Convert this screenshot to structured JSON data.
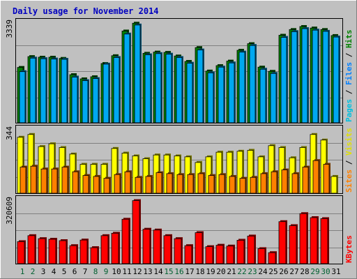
{
  "title": "Daily usage for November 2014",
  "colors": {
    "background": "#c0c0c0",
    "title": "#0000c0",
    "hits": "#008000",
    "files": "#00a8f0",
    "pages": "#00c0e0",
    "visits": "#ffff00",
    "sites": "#ff8000",
    "kbytes": "#ff0000",
    "weekend_day": "#006030",
    "weekday": "#000000"
  },
  "chart_data": [
    {
      "type": "bar",
      "name": "hits-files-pages",
      "ymax_label": "3339",
      "ylim": [
        0,
        3339
      ],
      "legend": [
        "Pages",
        "Files",
        "Hits"
      ],
      "categories": [
        "1",
        "2",
        "3",
        "4",
        "5",
        "6",
        "7",
        "8",
        "9",
        "10",
        "11",
        "12",
        "13",
        "14",
        "15",
        "16",
        "17",
        "18",
        "19",
        "20",
        "21",
        "22",
        "23",
        "24",
        "25",
        "26",
        "27",
        "28",
        "29",
        "30",
        "31"
      ],
      "series": [
        {
          "name": "Hits",
          "values": [
            1840,
            2200,
            2180,
            2180,
            2140,
            1600,
            1460,
            1530,
            1970,
            2230,
            3050,
            3310,
            2310,
            2350,
            2340,
            2220,
            2040,
            2500,
            1720,
            1900,
            2050,
            2410,
            2630,
            1850,
            1710,
            2910,
            3100,
            3200,
            3150,
            3100,
            2900
          ],
          "color": "#008000"
        },
        {
          "name": "Files",
          "values": [
            1700,
            2150,
            2130,
            2120,
            2110,
            1520,
            1400,
            1470,
            1950,
            2170,
            2950,
            3250,
            2260,
            2300,
            2280,
            2170,
            1980,
            2420,
            1660,
            1850,
            1990,
            2350,
            2570,
            1780,
            1640,
            2840,
            3030,
            3130,
            3080,
            3040,
            2850
          ],
          "color": "#00a8f0"
        }
      ]
    },
    {
      "type": "bar",
      "name": "visits-sites",
      "ymax_label": "344",
      "ylim": [
        0,
        344
      ],
      "legend": [
        "Sites",
        "Visits"
      ],
      "categories": [
        "1",
        "2",
        "3",
        "4",
        "5",
        "6",
        "7",
        "8",
        "9",
        "10",
        "11",
        "12",
        "13",
        "14",
        "15",
        "16",
        "17",
        "18",
        "19",
        "20",
        "21",
        "22",
        "23",
        "24",
        "25",
        "26",
        "27",
        "28",
        "29",
        "30",
        "31"
      ],
      "series": [
        {
          "name": "Visits",
          "values": [
            300,
            315,
            250,
            265,
            245,
            210,
            155,
            155,
            155,
            240,
            215,
            200,
            185,
            205,
            205,
            200,
            195,
            165,
            195,
            220,
            220,
            225,
            230,
            195,
            255,
            245,
            190,
            245,
            315,
            285,
            90
          ],
          "color": "#ffff00"
        },
        {
          "name": "Sites",
          "values": [
            140,
            145,
            130,
            130,
            140,
            115,
            95,
            90,
            80,
            100,
            115,
            85,
            90,
            110,
            105,
            100,
            100,
            105,
            95,
            100,
            90,
            80,
            85,
            105,
            115,
            125,
            105,
            140,
            175,
            155,
            0
          ],
          "color": "#ff8000"
        }
      ]
    },
    {
      "type": "bar",
      "name": "kbytes",
      "ymax_label": "320609",
      "ylim": [
        0,
        320609
      ],
      "legend": [
        "KBytes"
      ],
      "categories": [
        "1",
        "2",
        "3",
        "4",
        "5",
        "6",
        "7",
        "8",
        "9",
        "10",
        "11",
        "12",
        "13",
        "14",
        "15",
        "16",
        "17",
        "18",
        "19",
        "20",
        "21",
        "22",
        "23",
        "24",
        "25",
        "26",
        "27",
        "28",
        "29",
        "30",
        "31"
      ],
      "series": [
        {
          "name": "KBytes",
          "values": [
            110000,
            140000,
            125000,
            122000,
            115000,
            90000,
            118000,
            80000,
            140000,
            152000,
            222000,
            315000,
            172000,
            168000,
            140000,
            125000,
            90000,
            155000,
            85000,
            92000,
            88000,
            117000,
            138000,
            75000,
            55000,
            210000,
            190000,
            250000,
            230000,
            225000,
            0
          ],
          "color": "#ff0000"
        }
      ]
    }
  ],
  "x_labels": [
    {
      "text": "1",
      "weekend": true
    },
    {
      "text": "2",
      "weekend": true
    },
    {
      "text": "3",
      "weekend": false
    },
    {
      "text": "4",
      "weekend": false
    },
    {
      "text": "5",
      "weekend": false
    },
    {
      "text": "6",
      "weekend": false
    },
    {
      "text": "7",
      "weekend": false
    },
    {
      "text": "8",
      "weekend": true
    },
    {
      "text": "9",
      "weekend": true
    },
    {
      "text": "10",
      "weekend": false
    },
    {
      "text": "11",
      "weekend": false
    },
    {
      "text": "12",
      "weekend": false
    },
    {
      "text": "13",
      "weekend": false
    },
    {
      "text": "14",
      "weekend": false
    },
    {
      "text": "15",
      "weekend": true
    },
    {
      "text": "16",
      "weekend": true
    },
    {
      "text": "17",
      "weekend": false
    },
    {
      "text": "18",
      "weekend": false
    },
    {
      "text": "19",
      "weekend": false
    },
    {
      "text": "20",
      "weekend": false
    },
    {
      "text": "21",
      "weekend": false
    },
    {
      "text": "22",
      "weekend": true
    },
    {
      "text": "23",
      "weekend": true
    },
    {
      "text": "24",
      "weekend": false
    },
    {
      "text": "25",
      "weekend": false
    },
    {
      "text": "26",
      "weekend": false
    },
    {
      "text": "27",
      "weekend": false
    },
    {
      "text": "28",
      "weekend": false
    },
    {
      "text": "29",
      "weekend": true
    },
    {
      "text": "30",
      "weekend": true
    },
    {
      "text": "31",
      "weekend": false
    }
  ]
}
